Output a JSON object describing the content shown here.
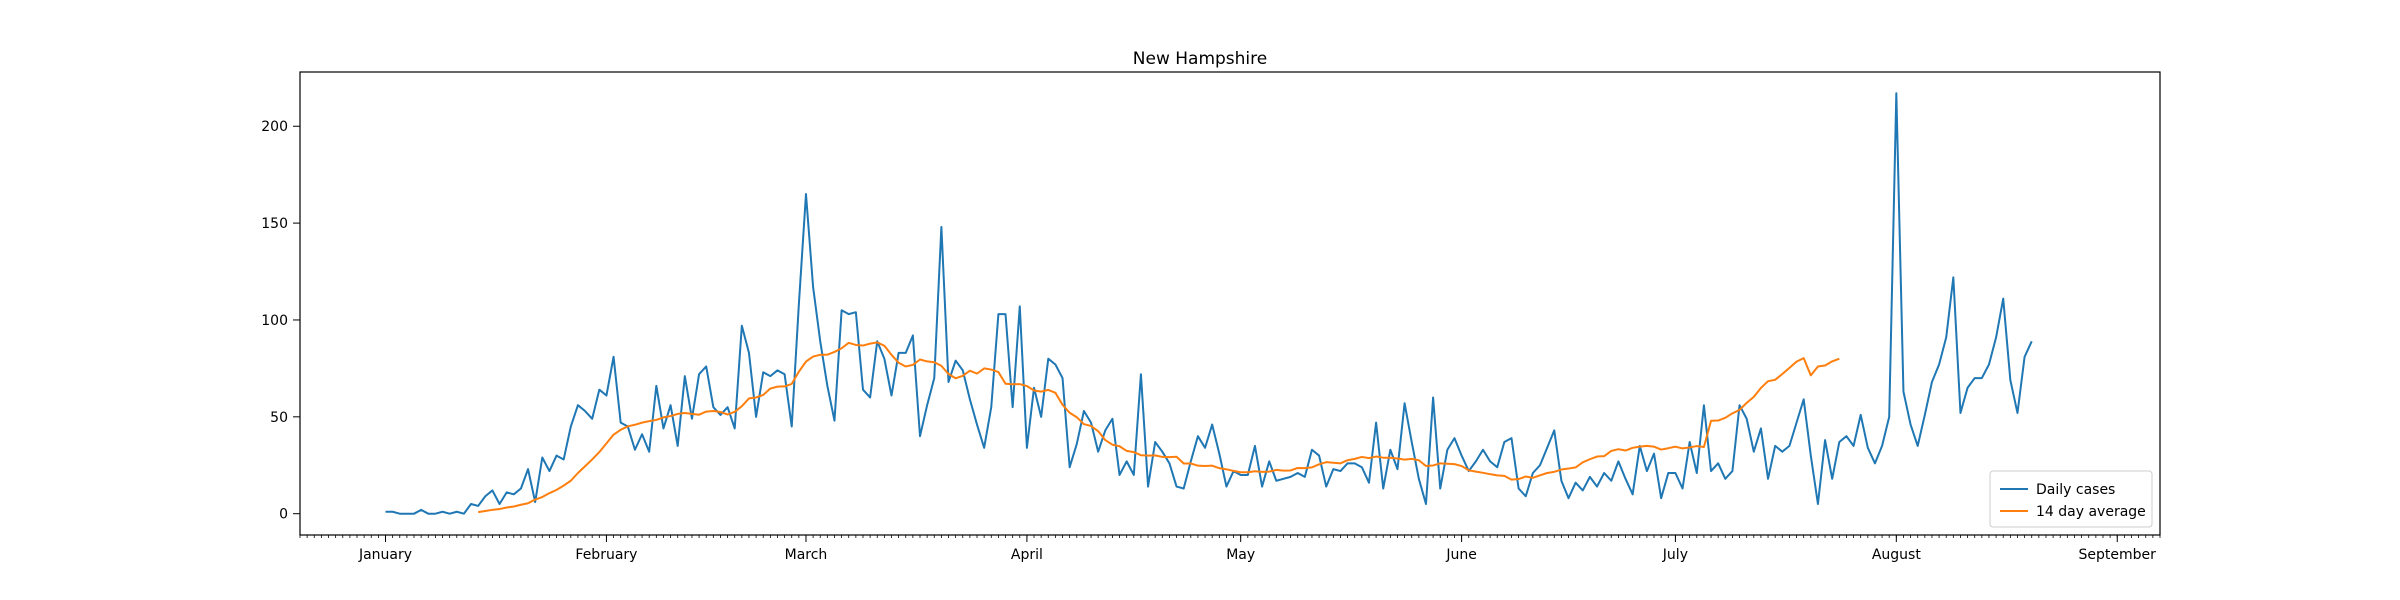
{
  "chart_data": {
    "type": "line",
    "title": "New Hampshire",
    "xlabel": "",
    "ylabel": "",
    "x_start": "2021-01-01",
    "x_ticks": [
      {
        "date": "2021-01-01",
        "label": "January"
      },
      {
        "date": "2021-02-01",
        "label": "February"
      },
      {
        "date": "2021-03-01",
        "label": "March"
      },
      {
        "date": "2021-04-01",
        "label": "April"
      },
      {
        "date": "2021-05-01",
        "label": "May"
      },
      {
        "date": "2021-06-01",
        "label": "June"
      },
      {
        "date": "2021-07-01",
        "label": "July"
      },
      {
        "date": "2021-08-01",
        "label": "August"
      },
      {
        "date": "2021-09-01",
        "label": "September"
      }
    ],
    "xlim": [
      "2020-12-20",
      "2021-09-07"
    ],
    "y_ticks": [
      0,
      50,
      100,
      150,
      200
    ],
    "ylim": [
      -11,
      228
    ],
    "grid": false,
    "legend_position": "bottom-right",
    "series": [
      {
        "name": "Daily cases",
        "color": "#1f77b4",
        "values": [
          1,
          1,
          0,
          0,
          0,
          2,
          0,
          0,
          1,
          0,
          1,
          0,
          5,
          4,
          9,
          12,
          5,
          11,
          10,
          13,
          23,
          6,
          29,
          22,
          30,
          28,
          45,
          56,
          53,
          49,
          64,
          61,
          81,
          47,
          45,
          33,
          41,
          32,
          66,
          44,
          56,
          35,
          71,
          49,
          72,
          76,
          55,
          51,
          55,
          44,
          97,
          83,
          50,
          73,
          71,
          74,
          72,
          45,
          108,
          165,
          117,
          89,
          66,
          48,
          105,
          103,
          104,
          64,
          60,
          89,
          80,
          61,
          83,
          83,
          92,
          40,
          56,
          70,
          148,
          68,
          79,
          74,
          59,
          46,
          34,
          55,
          103,
          103,
          55,
          107,
          34,
          65,
          50,
          80,
          77,
          70,
          24,
          36,
          53,
          47,
          32,
          43,
          49,
          20,
          27,
          20,
          72,
          14,
          37,
          32,
          26,
          14,
          13,
          27,
          40,
          34,
          46,
          31,
          14,
          22,
          20,
          20,
          35,
          14,
          27,
          17,
          18,
          19,
          21,
          19,
          33,
          30,
          14,
          23,
          22,
          26,
          26,
          24,
          16,
          47,
          13,
          33,
          23,
          57,
          37,
          18,
          5,
          60,
          13,
          33,
          39,
          30,
          22,
          27,
          33,
          27,
          24,
          37,
          39,
          13,
          9,
          21,
          25,
          34,
          43,
          17,
          8,
          16,
          12,
          19,
          14,
          21,
          17,
          27,
          18,
          10,
          35,
          22,
          31,
          8,
          21,
          21,
          13,
          37,
          21,
          56,
          22,
          26,
          18,
          22,
          56,
          49,
          32,
          44,
          18,
          35,
          32,
          35,
          47,
          59,
          30,
          5,
          38,
          18,
          37,
          40,
          35,
          51,
          34,
          26,
          35,
          50,
          217,
          63,
          46,
          35,
          51,
          68,
          77,
          91,
          122,
          52,
          65,
          70,
          70,
          77,
          91,
          111,
          69,
          52,
          81,
          89
        ],
        "y_offset_note": "series starts at x_start"
      },
      {
        "name": "14 day average",
        "color": "#ff7f0e",
        "start_date": "2021-01-14",
        "values": [
          0.8,
          1.4,
          2.0,
          2.4,
          3.2,
          3.7,
          4.6,
          5.4,
          7.3,
          8.6,
          10.6,
          12.3,
          14.5,
          17.0,
          21.0,
          24.5,
          28.0,
          31.8,
          36.3,
          40.8,
          43.3,
          45.1,
          45.9,
          47.0,
          47.8,
          48.4,
          49.7,
          50.4,
          51.5,
          52.0,
          51.5,
          51.1,
          52.7,
          53.0,
          52.5,
          51.2,
          52.6,
          55.5,
          59.5,
          60.0,
          61.3,
          64.6,
          65.6,
          65.7,
          67.0,
          73.3,
          78.5,
          81.1,
          82.0,
          82.1,
          83.5,
          85.4,
          88.2,
          87.1,
          86.8,
          87.8,
          88.4,
          86.7,
          82.0,
          77.9,
          76.0,
          76.8,
          79.6,
          78.6,
          78.2,
          76.3,
          72.1,
          69.9,
          71.2,
          73.8,
          72.3,
          75.0,
          74.4,
          73.1,
          67.1,
          66.8,
          66.9,
          65.9,
          63.6,
          63.0,
          63.9,
          62.4,
          56.2,
          52.1,
          49.8,
          46.2,
          45.3,
          42.6,
          38.0,
          35.6,
          34.8,
          32.4,
          31.8,
          30.2,
          30.0,
          30.1,
          29.3,
          29.2,
          29.4,
          25.9,
          25.9,
          24.8,
          24.6,
          24.8,
          23.5,
          22.9,
          22.1,
          21.4,
          21.4,
          21.9,
          21.6,
          21.7,
          22.6,
          22.2,
          22.3,
          23.6,
          23.5,
          23.9,
          25.5,
          26.6,
          26.3,
          26.0,
          27.6,
          28.3,
          29.3,
          28.7,
          29.5,
          28.9,
          28.9,
          28.5,
          27.9,
          28.3,
          27.6,
          24.6,
          24.9,
          26.0,
          25.8,
          25.6,
          24.6,
          22.4,
          21.7,
          21.1,
          20.4,
          19.8,
          19.5,
          17.6,
          17.9,
          19.2,
          18.5,
          19.8,
          21.0,
          21.6,
          22.8,
          23.3,
          23.9,
          26.5,
          28.1,
          29.5,
          29.7,
          32.4,
          33.3,
          32.6,
          34.0,
          34.6,
          35.0,
          34.6,
          33.1,
          33.8,
          34.6,
          33.7,
          34.2,
          34.9,
          34.4,
          48.0,
          48.1,
          49.5,
          51.8,
          53.6,
          57.2,
          60.3,
          64.9,
          68.4,
          69.1,
          72.1,
          75.3,
          78.5,
          80.3,
          71.4,
          76.0,
          76.5,
          78.6,
          80.0
        ]
      }
    ]
  }
}
